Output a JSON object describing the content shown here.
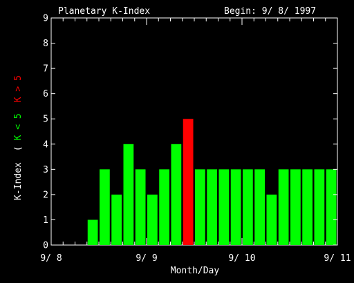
{
  "chart_data": {
    "type": "bar",
    "title": "Planetary K-Index",
    "subtitle": "Begin: 9/ 8/ 1997",
    "xlabel": "Month/Day",
    "ylabel": "K-Index",
    "legend": {
      "open": "(",
      "below": "K < 5",
      "above": "K > 5",
      "below_color": "#00ff00",
      "above_color": "#ff0000"
    },
    "ylim": [
      0,
      9
    ],
    "yticks": [
      "0",
      "1",
      "2",
      "3",
      "4",
      "5",
      "6",
      "7",
      "8",
      "9"
    ],
    "xticks": [
      "9/ 8",
      "9/ 9",
      "9/ 10",
      "9/ 11"
    ],
    "bins_per_day": 8,
    "values": [
      0,
      0,
      0,
      1,
      3,
      2,
      4,
      3,
      2,
      3,
      4,
      5,
      3,
      3,
      3,
      3,
      3,
      3,
      2,
      3,
      3,
      3,
      3,
      3
    ],
    "threshold": 5,
    "colors": {
      "normal": "#00ff00",
      "high": "#ff0000",
      "axis": "#ffffff",
      "background": "#000000"
    }
  }
}
